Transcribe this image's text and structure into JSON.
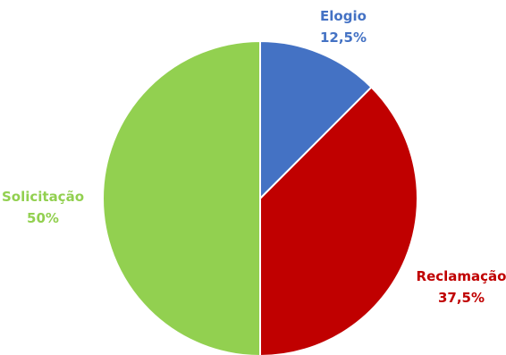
{
  "chart_data": {
    "type": "pie",
    "title": "",
    "start_angle_deg": 0,
    "direction": "clockwise",
    "slices": [
      {
        "label": "Elogio",
        "value": 12.5,
        "value_label": "12,5%",
        "color": "#4472C4"
      },
      {
        "label": "Reclamação",
        "value": 37.5,
        "value_label": "37,5%",
        "color": "#C00000"
      },
      {
        "label": "Solicitação",
        "value": 50,
        "value_label": "50%",
        "color": "#92D050"
      }
    ],
    "legend": "none",
    "label_position": "outside"
  }
}
